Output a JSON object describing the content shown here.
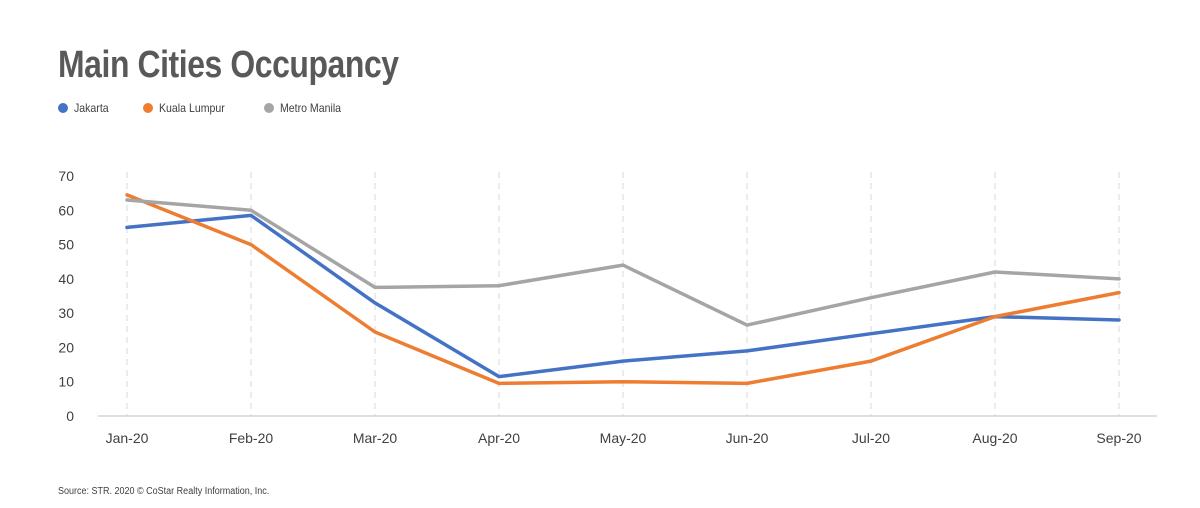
{
  "chart_data": {
    "type": "line",
    "title": "Main Cities Occupancy",
    "categories": [
      "Jan-20",
      "Feb-20",
      "Mar-20",
      "Apr-20",
      "May-20",
      "Jun-20",
      "Jul-20",
      "Aug-20",
      "Sep-20"
    ],
    "series": [
      {
        "name": "Jakarta",
        "color": "#4472c4",
        "values": [
          55,
          58.5,
          33,
          11.5,
          16,
          19,
          24,
          29,
          28
        ]
      },
      {
        "name": "Kuala Lumpur",
        "color": "#ed7d31",
        "values": [
          64.5,
          50,
          24.5,
          9.5,
          10,
          9.5,
          16,
          29,
          36
        ]
      },
      {
        "name": "Metro Manila",
        "color": "#a5a5a5",
        "values": [
          63,
          60,
          37.5,
          38,
          44,
          26.5,
          34.5,
          42,
          40
        ]
      }
    ],
    "ylim": [
      0,
      70
    ],
    "yticks": [
      0,
      10,
      20,
      30,
      40,
      50,
      60,
      70
    ],
    "legend_position": "top-left",
    "grid": "vertical-dashed"
  },
  "source": "Source: STR. 2020 © CoStar Realty Information, Inc."
}
